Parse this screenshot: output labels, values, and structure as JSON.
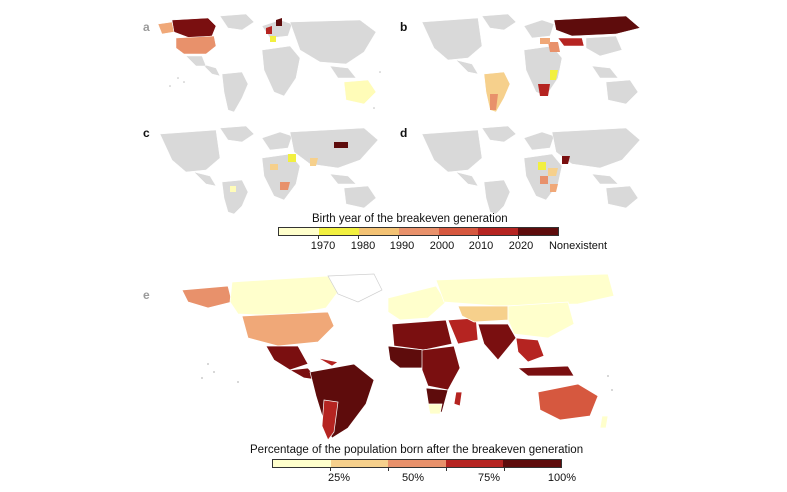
{
  "panels": [
    {
      "letter": "a",
      "letter_color": "#9a9a9a"
    },
    {
      "letter": "b",
      "letter_color": "#111111"
    },
    {
      "letter": "c",
      "letter_color": "#111111"
    },
    {
      "letter": "d",
      "letter_color": "#111111"
    },
    {
      "letter": "e",
      "letter_color": "#9a9a9a"
    }
  ],
  "legend_top": {
    "title": "Birth year of the breakeven generation",
    "labels": [
      "1970",
      "1980",
      "1990",
      "2000",
      "2010",
      "2020",
      "Nonexistent"
    ],
    "colors": [
      "#ffffcc",
      "#f2f040",
      "#f3c274",
      "#e8916b",
      "#d6583f",
      "#b52421",
      "#5e0c0c"
    ]
  },
  "legend_bottom": {
    "title": "Percentage of the population born after the breakeven generation",
    "labels": [
      "25%",
      "50%",
      "75%",
      "100%"
    ],
    "colors": [
      "#ffffcc",
      "#f6d08c",
      "#e8916b",
      "#b52421",
      "#5e0c0c"
    ]
  },
  "colors": {
    "no_data": "#d9d9d9",
    "border": "#ffffff"
  }
}
